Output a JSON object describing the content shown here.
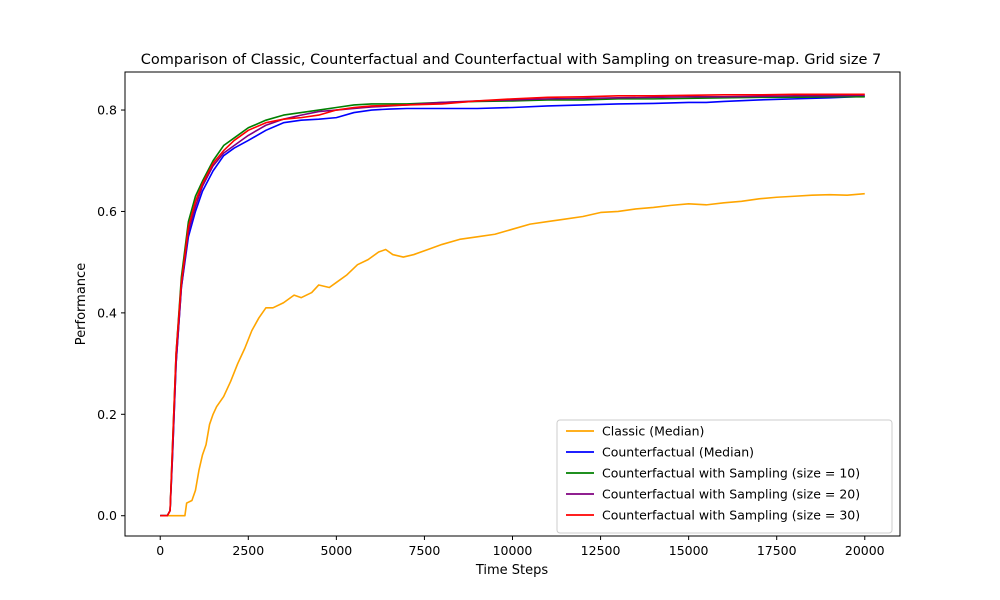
{
  "chart_data": {
    "type": "line",
    "title": "Comparison of Classic, Counterfactual and Counterfactual with Sampling on treasure-map. Grid size 7",
    "xlabel": "Time Steps",
    "ylabel": "Performance",
    "xlim": [
      -1000,
      21000
    ],
    "ylim": [
      -0.04,
      0.875
    ],
    "xticks": [
      0,
      2500,
      5000,
      7500,
      10000,
      12500,
      15000,
      17500,
      20000
    ],
    "yticks": [
      "0.0",
      "0.2",
      "0.4",
      "0.6",
      "0.8"
    ],
    "grid": false,
    "legend_position": "lower-right",
    "series": [
      {
        "name": "Classic (Median)",
        "color": "#ffa500",
        "points": [
          [
            0,
            0
          ],
          [
            300,
            0
          ],
          [
            700,
            0
          ],
          [
            750,
            0.025
          ],
          [
            900,
            0.03
          ],
          [
            1000,
            0.05
          ],
          [
            1100,
            0.09
          ],
          [
            1200,
            0.12
          ],
          [
            1300,
            0.14
          ],
          [
            1400,
            0.18
          ],
          [
            1500,
            0.2
          ],
          [
            1600,
            0.215
          ],
          [
            1800,
            0.235
          ],
          [
            2000,
            0.265
          ],
          [
            2200,
            0.3
          ],
          [
            2400,
            0.33
          ],
          [
            2600,
            0.365
          ],
          [
            2800,
            0.39
          ],
          [
            3000,
            0.41
          ],
          [
            3200,
            0.41
          ],
          [
            3500,
            0.42
          ],
          [
            3800,
            0.435
          ],
          [
            4000,
            0.43
          ],
          [
            4300,
            0.44
          ],
          [
            4500,
            0.455
          ],
          [
            4800,
            0.45
          ],
          [
            5000,
            0.46
          ],
          [
            5300,
            0.475
          ],
          [
            5600,
            0.495
          ],
          [
            5900,
            0.505
          ],
          [
            6200,
            0.52
          ],
          [
            6400,
            0.525
          ],
          [
            6600,
            0.515
          ],
          [
            6900,
            0.51
          ],
          [
            7200,
            0.515
          ],
          [
            7600,
            0.525
          ],
          [
            8000,
            0.535
          ],
          [
            8500,
            0.545
          ],
          [
            9000,
            0.55
          ],
          [
            9500,
            0.555
          ],
          [
            10000,
            0.565
          ],
          [
            10500,
            0.575
          ],
          [
            11000,
            0.58
          ],
          [
            11500,
            0.585
          ],
          [
            12000,
            0.59
          ],
          [
            12500,
            0.598
          ],
          [
            13000,
            0.6
          ],
          [
            13500,
            0.605
          ],
          [
            14000,
            0.608
          ],
          [
            14500,
            0.612
          ],
          [
            15000,
            0.615
          ],
          [
            15500,
            0.613
          ],
          [
            16000,
            0.617
          ],
          [
            16500,
            0.62
          ],
          [
            17000,
            0.625
          ],
          [
            17500,
            0.628
          ],
          [
            18000,
            0.63
          ],
          [
            18500,
            0.632
          ],
          [
            19000,
            0.633
          ],
          [
            19500,
            0.632
          ],
          [
            20000,
            0.635
          ]
        ]
      },
      {
        "name": "Counterfactual (Median)",
        "color": "#0000ff",
        "points": [
          [
            0,
            0
          ],
          [
            200,
            0
          ],
          [
            280,
            0.01
          ],
          [
            350,
            0.12
          ],
          [
            450,
            0.3
          ],
          [
            600,
            0.45
          ],
          [
            800,
            0.55
          ],
          [
            1000,
            0.6
          ],
          [
            1200,
            0.64
          ],
          [
            1500,
            0.68
          ],
          [
            1800,
            0.71
          ],
          [
            2100,
            0.725
          ],
          [
            2500,
            0.74
          ],
          [
            3000,
            0.76
          ],
          [
            3500,
            0.775
          ],
          [
            4000,
            0.78
          ],
          [
            4500,
            0.782
          ],
          [
            5000,
            0.785
          ],
          [
            5500,
            0.795
          ],
          [
            6000,
            0.8
          ],
          [
            6500,
            0.802
          ],
          [
            7000,
            0.803
          ],
          [
            8000,
            0.803
          ],
          [
            9000,
            0.803
          ],
          [
            10000,
            0.805
          ],
          [
            11000,
            0.808
          ],
          [
            12000,
            0.81
          ],
          [
            13000,
            0.812
          ],
          [
            14000,
            0.813
          ],
          [
            15000,
            0.815
          ],
          [
            15500,
            0.815
          ],
          [
            16000,
            0.817
          ],
          [
            17000,
            0.82
          ],
          [
            18000,
            0.822
          ],
          [
            19000,
            0.824
          ],
          [
            20000,
            0.827
          ]
        ]
      },
      {
        "name": "Counterfactual with Sampling (size = 10)",
        "color": "#008000",
        "points": [
          [
            0,
            0
          ],
          [
            200,
            0
          ],
          [
            280,
            0.01
          ],
          [
            350,
            0.14
          ],
          [
            450,
            0.32
          ],
          [
            600,
            0.47
          ],
          [
            800,
            0.58
          ],
          [
            1000,
            0.63
          ],
          [
            1200,
            0.66
          ],
          [
            1500,
            0.7
          ],
          [
            1800,
            0.73
          ],
          [
            2100,
            0.745
          ],
          [
            2500,
            0.765
          ],
          [
            3000,
            0.78
          ],
          [
            3500,
            0.79
          ],
          [
            4000,
            0.795
          ],
          [
            4500,
            0.8
          ],
          [
            5000,
            0.805
          ],
          [
            5500,
            0.81
          ],
          [
            6000,
            0.812
          ],
          [
            7000,
            0.812
          ],
          [
            8000,
            0.815
          ],
          [
            9000,
            0.817
          ],
          [
            10000,
            0.818
          ],
          [
            11000,
            0.82
          ],
          [
            12000,
            0.82
          ],
          [
            13000,
            0.822
          ],
          [
            14000,
            0.822
          ],
          [
            15000,
            0.823
          ],
          [
            16000,
            0.824
          ],
          [
            17000,
            0.825
          ],
          [
            18000,
            0.825
          ],
          [
            19000,
            0.826
          ],
          [
            20000,
            0.826
          ]
        ]
      },
      {
        "name": "Counterfactual with Sampling (size = 20)",
        "color": "#800080",
        "points": [
          [
            0,
            0
          ],
          [
            200,
            0
          ],
          [
            280,
            0.01
          ],
          [
            350,
            0.12
          ],
          [
            450,
            0.3
          ],
          [
            600,
            0.45
          ],
          [
            800,
            0.56
          ],
          [
            1000,
            0.61
          ],
          [
            1200,
            0.65
          ],
          [
            1500,
            0.69
          ],
          [
            1800,
            0.715
          ],
          [
            2100,
            0.73
          ],
          [
            2500,
            0.75
          ],
          [
            3000,
            0.77
          ],
          [
            3500,
            0.782
          ],
          [
            4000,
            0.79
          ],
          [
            4500,
            0.797
          ],
          [
            5000,
            0.8
          ],
          [
            5500,
            0.803
          ],
          [
            6000,
            0.806
          ],
          [
            7000,
            0.81
          ],
          [
            8000,
            0.815
          ],
          [
            9000,
            0.818
          ],
          [
            10000,
            0.82
          ],
          [
            11000,
            0.822
          ],
          [
            12000,
            0.823
          ],
          [
            13000,
            0.824
          ],
          [
            14000,
            0.825
          ],
          [
            15000,
            0.826
          ],
          [
            16000,
            0.826
          ],
          [
            17000,
            0.827
          ],
          [
            18000,
            0.828
          ],
          [
            19000,
            0.828
          ],
          [
            20000,
            0.829
          ]
        ]
      },
      {
        "name": "Counterfactual with Sampling (size = 30)",
        "color": "#ff0000",
        "points": [
          [
            0,
            0
          ],
          [
            200,
            0
          ],
          [
            280,
            0.01
          ],
          [
            350,
            0.14
          ],
          [
            450,
            0.32
          ],
          [
            600,
            0.46
          ],
          [
            800,
            0.57
          ],
          [
            1000,
            0.62
          ],
          [
            1200,
            0.655
          ],
          [
            1500,
            0.695
          ],
          [
            1800,
            0.72
          ],
          [
            2100,
            0.74
          ],
          [
            2500,
            0.76
          ],
          [
            3000,
            0.775
          ],
          [
            3500,
            0.782
          ],
          [
            4000,
            0.785
          ],
          [
            4500,
            0.79
          ],
          [
            5000,
            0.8
          ],
          [
            5500,
            0.805
          ],
          [
            6000,
            0.808
          ],
          [
            7000,
            0.81
          ],
          [
            8000,
            0.812
          ],
          [
            9000,
            0.818
          ],
          [
            10000,
            0.822
          ],
          [
            11000,
            0.825
          ],
          [
            12000,
            0.826
          ],
          [
            13000,
            0.828
          ],
          [
            14000,
            0.828
          ],
          [
            15000,
            0.829
          ],
          [
            16000,
            0.83
          ],
          [
            17000,
            0.83
          ],
          [
            18000,
            0.831
          ],
          [
            19000,
            0.831
          ],
          [
            20000,
            0.831
          ]
        ]
      }
    ]
  }
}
